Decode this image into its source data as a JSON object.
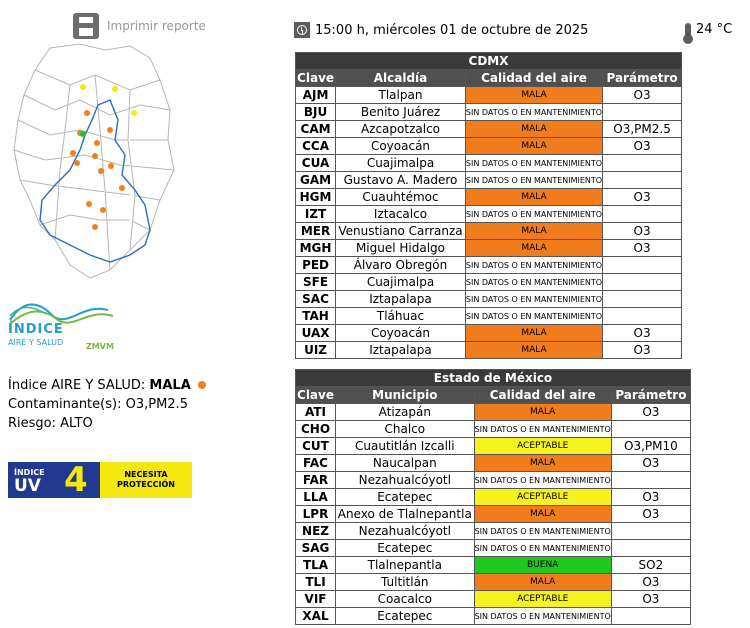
{
  "print": {
    "label": "Imprimir reporte"
  },
  "header": {
    "time": "15:00 h, miércoles 01 de octubre de 2025",
    "temperature": "24 °C"
  },
  "logo": {
    "line1": "ÍNDICE",
    "line2": "AIRE Y SALUD",
    "line3": "ZMVM"
  },
  "info": {
    "index_label": "Índice AIRE Y SALUD:",
    "index_value": "MALA",
    "pollutants_label": "Contaminante(s):",
    "pollutants_value": "O3,PM2.5",
    "risk_label": "Riesgo:",
    "risk_value": "ALTO"
  },
  "uv": {
    "small": "ÍNDICE",
    "big": "UV",
    "value": "4",
    "msg1": "NECESITA",
    "msg2": "PROTECCIÓN"
  },
  "cdmx": {
    "title": "CDMX",
    "headers": [
      "Clave",
      "Alcaldía",
      "Calidad del aire",
      "Parámetro"
    ],
    "rows": [
      {
        "clave": "AJM",
        "name": "Tlalpan",
        "quality": "MALA",
        "status": "mala",
        "param": "O3"
      },
      {
        "clave": "BJU",
        "name": "Benito Juárez",
        "quality": "SIN DATOS O EN MANTENIMIENTO",
        "status": "none",
        "param": ""
      },
      {
        "clave": "CAM",
        "name": "Azcapotzalco",
        "quality": "MALA",
        "status": "mala",
        "param": "O3,PM2.5"
      },
      {
        "clave": "CCA",
        "name": "Coyoacán",
        "quality": "MALA",
        "status": "mala",
        "param": "O3"
      },
      {
        "clave": "CUA",
        "name": "Cuajimalpa",
        "quality": "SIN DATOS O EN MANTENIMIENTO",
        "status": "none",
        "param": ""
      },
      {
        "clave": "GAM",
        "name": "Gustavo A. Madero",
        "quality": "SIN DATOS O EN MANTENIMIENTO",
        "status": "none",
        "param": ""
      },
      {
        "clave": "HGM",
        "name": "Cuauhtémoc",
        "quality": "MALA",
        "status": "mala",
        "param": "O3"
      },
      {
        "clave": "IZT",
        "name": "Iztacalco",
        "quality": "SIN DATOS O EN MANTENIMIENTO",
        "status": "none",
        "param": ""
      },
      {
        "clave": "MER",
        "name": "Venustiano Carranza",
        "quality": "MALA",
        "status": "mala",
        "param": "O3"
      },
      {
        "clave": "MGH",
        "name": "Miguel Hidalgo",
        "quality": "MALA",
        "status": "mala",
        "param": "O3"
      },
      {
        "clave": "PED",
        "name": "Álvaro Obregón",
        "quality": "SIN DATOS O EN MANTENIMIENTO",
        "status": "none",
        "param": ""
      },
      {
        "clave": "SFE",
        "name": "Cuajimalpa",
        "quality": "SIN DATOS O EN MANTENIMIENTO",
        "status": "none",
        "param": ""
      },
      {
        "clave": "SAC",
        "name": "Iztapalapa",
        "quality": "SIN DATOS O EN MANTENIMIENTO",
        "status": "none",
        "param": ""
      },
      {
        "clave": "TAH",
        "name": "Tláhuac",
        "quality": "SIN DATOS O EN MANTENIMIENTO",
        "status": "none",
        "param": ""
      },
      {
        "clave": "UAX",
        "name": "Coyoacán",
        "quality": "MALA",
        "status": "mala",
        "param": "O3"
      },
      {
        "clave": "UIZ",
        "name": "Iztapalapa",
        "quality": "MALA",
        "status": "mala",
        "param": "O3"
      }
    ]
  },
  "edomex": {
    "title": "Estado de México",
    "headers": [
      "Clave",
      "Municipio",
      "Calidad del aire",
      "Parámetro"
    ],
    "rows": [
      {
        "clave": "ATI",
        "name": "Atizapán",
        "quality": "MALA",
        "status": "mala",
        "param": "O3"
      },
      {
        "clave": "CHO",
        "name": "Chalco",
        "quality": "SIN DATOS O EN MANTENIMIENTO",
        "status": "none",
        "param": ""
      },
      {
        "clave": "CUT",
        "name": "Cuautitlán Izcalli",
        "quality": "ACEPTABLE",
        "status": "aceptable",
        "param": "O3,PM10"
      },
      {
        "clave": "FAC",
        "name": "Naucalpan",
        "quality": "MALA",
        "status": "mala",
        "param": "O3"
      },
      {
        "clave": "FAR",
        "name": "Nezahualcóyotl",
        "quality": "SIN DATOS O EN MANTENIMIENTO",
        "status": "none",
        "param": ""
      },
      {
        "clave": "LLA",
        "name": "Ecatepec",
        "quality": "ACEPTABLE",
        "status": "aceptable",
        "param": "O3"
      },
      {
        "clave": "LPR",
        "name": "Anexo de Tlalnepantla",
        "quality": "MALA",
        "status": "mala",
        "param": "O3"
      },
      {
        "clave": "NEZ",
        "name": "Nezahualcóyotl",
        "quality": "SIN DATOS O EN MANTENIMIENTO",
        "status": "none",
        "param": ""
      },
      {
        "clave": "SAG",
        "name": "Ecatepec",
        "quality": "SIN DATOS O EN MANTENIMIENTO",
        "status": "none",
        "param": ""
      },
      {
        "clave": "TLA",
        "name": "Tlalnepantla",
        "quality": "BUENA",
        "status": "buena",
        "param": "SO2"
      },
      {
        "clave": "TLI",
        "name": "Tultitlán",
        "quality": "MALA",
        "status": "mala",
        "param": "O3"
      },
      {
        "clave": "VIF",
        "name": "Coacalco",
        "quality": "ACEPTABLE",
        "status": "aceptable",
        "param": "O3"
      },
      {
        "clave": "XAL",
        "name": "Ecatepec",
        "quality": "SIN DATOS O EN MANTENIMIENTO",
        "status": "none",
        "param": ""
      }
    ]
  }
}
